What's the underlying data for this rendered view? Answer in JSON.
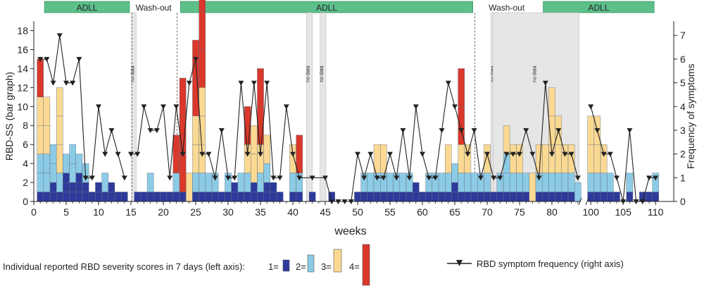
{
  "chart_data": {
    "type": "bar+line",
    "xlabel": "weeks",
    "ylabel_left": "RBD-SS (bar graph)",
    "ylabel_right": "Frequency of symptoms",
    "x_ticks": [
      "0",
      "5",
      "10",
      "15",
      "20",
      "25",
      "30",
      "35",
      "40",
      "45",
      "50",
      "55",
      "60",
      "65",
      "70",
      "75",
      "80",
      "100",
      "105",
      "110"
    ],
    "y_left_ticks": [
      "0",
      "2",
      "4",
      "6",
      "8",
      "10",
      "12",
      "14",
      "16",
      "18"
    ],
    "y_right_ticks": [
      "0",
      "1",
      "2",
      "3",
      "4",
      "5",
      "6",
      "7"
    ],
    "ylim_left": [
      0,
      19
    ],
    "ylim_right": [
      0,
      7.6
    ],
    "phases": [
      {
        "label": "ADLL",
        "start": 1,
        "end": 15
      },
      {
        "label": "Wash-out",
        "start": 15,
        "end": 22
      },
      {
        "label": "ADLL",
        "start": 22,
        "end": 68
      },
      {
        "label": "Wash-out",
        "start": 68,
        "end": 78
      },
      {
        "label": "ADLL",
        "start": 78,
        "end": 110
      }
    ],
    "no_data": [
      {
        "label": "no data",
        "start": 15.2,
        "end": 15.8
      },
      {
        "label": "no data",
        "start": 42.1,
        "end": 43.0
      },
      {
        "label": "no data",
        "start": 44.2,
        "end": 45.1
      },
      {
        "label": "no data",
        "start": 70.6,
        "end": 71.6
      },
      {
        "label": "no data",
        "start": 84.9,
        "end": 98.2
      }
    ],
    "legend": {
      "bars_title": "Individual reported RBD severity scores in 7 days (left axis):",
      "levels": [
        "1=",
        "2=",
        "3=",
        "4="
      ],
      "line": "RBD symptom frequency (right axis)"
    },
    "level_colors": {
      "1": "#2d3a9b",
      "2": "#8ccbe6",
      "3": "#fbd993",
      "4": "#d9382a"
    },
    "bars": [
      {
        "week": 1,
        "s": [
          1,
          2,
          2,
          1
        ]
      },
      {
        "week": 2,
        "s": [
          1,
          2,
          2,
          0
        ]
      },
      {
        "week": 3,
        "s": [
          2,
          2,
          0,
          0
        ]
      },
      {
        "week": 4,
        "s": [
          1,
          1,
          3,
          0
        ]
      },
      {
        "week": 5,
        "s": [
          3,
          1,
          0,
          0
        ]
      },
      {
        "week": 6,
        "s": [
          2,
          2,
          0,
          0
        ]
      },
      {
        "week": 7,
        "s": [
          3,
          1,
          0,
          0
        ]
      },
      {
        "week": 8,
        "s": [
          2,
          1,
          0,
          0
        ]
      },
      {
        "week": 9,
        "s": [
          1,
          0,
          0,
          0
        ]
      },
      {
        "week": 10,
        "s": [
          2,
          0,
          0,
          0
        ]
      },
      {
        "week": 11,
        "s": [
          1,
          1,
          0,
          0
        ]
      },
      {
        "week": 12,
        "s": [
          2,
          0,
          0,
          0
        ]
      },
      {
        "week": 13,
        "s": [
          1,
          0,
          0,
          0
        ]
      },
      {
        "week": 14,
        "s": [
          1,
          0,
          0,
          0
        ]
      },
      {
        "week": 16,
        "s": [
          1,
          0,
          0,
          0
        ]
      },
      {
        "week": 17,
        "s": [
          1,
          0,
          0,
          0
        ]
      },
      {
        "week": 18,
        "s": [
          1,
          1,
          0,
          0
        ]
      },
      {
        "week": 19,
        "s": [
          1,
          0,
          0,
          0
        ]
      },
      {
        "week": 20,
        "s": [
          1,
          0,
          0,
          0
        ]
      },
      {
        "week": 21,
        "s": [
          1,
          0,
          0,
          0
        ]
      },
      {
        "week": 22,
        "s": [
          1,
          1,
          0,
          1
        ]
      },
      {
        "week": 23,
        "s": [
          1,
          0,
          0,
          3
        ]
      },
      {
        "week": 24,
        "s": [
          0,
          0,
          1,
          0
        ]
      },
      {
        "week": 25,
        "s": [
          1,
          1,
          2,
          2
        ]
      },
      {
        "week": 26,
        "s": [
          1,
          1,
          3,
          4
        ]
      },
      {
        "week": 27,
        "s": [
          1,
          1,
          0,
          0
        ]
      },
      {
        "week": 28,
        "s": [
          1,
          1,
          0,
          0
        ]
      },
      {
        "week": 29,
        "s": [
          1,
          0,
          0,
          0
        ]
      },
      {
        "week": 30,
        "s": [
          1,
          1,
          0,
          0
        ]
      },
      {
        "week": 31,
        "s": [
          2,
          0,
          0,
          0
        ]
      },
      {
        "week": 32,
        "s": [
          1,
          1,
          0,
          0
        ]
      },
      {
        "week": 33,
        "s": [
          1,
          1,
          1,
          1
        ]
      },
      {
        "week": 34,
        "s": [
          2,
          0,
          2,
          0
        ]
      },
      {
        "week": 35,
        "s": [
          1,
          1,
          1,
          2
        ]
      },
      {
        "week": 36,
        "s": [
          2,
          1,
          1,
          0
        ]
      },
      {
        "week": 37,
        "s": [
          2,
          0,
          0,
          0
        ]
      },
      {
        "week": 38,
        "s": [
          1,
          0,
          0,
          0
        ]
      },
      {
        "week": 40,
        "s": [
          1,
          1,
          1,
          0
        ]
      },
      {
        "week": 41,
        "s": [
          1,
          1,
          0,
          1
        ]
      },
      {
        "week": 43,
        "s": [
          1,
          0,
          0,
          0
        ]
      },
      {
        "week": 46,
        "s": [
          1,
          0,
          0,
          0
        ]
      },
      {
        "week": 50,
        "s": [
          1,
          0,
          0,
          0
        ]
      },
      {
        "week": 51,
        "s": [
          1,
          1,
          0,
          0
        ]
      },
      {
        "week": 52,
        "s": [
          1,
          1,
          0,
          0
        ]
      },
      {
        "week": 53,
        "s": [
          1,
          1,
          1,
          0
        ]
      },
      {
        "week": 54,
        "s": [
          1,
          1,
          1,
          0
        ]
      },
      {
        "week": 55,
        "s": [
          1,
          1,
          0,
          0
        ]
      },
      {
        "week": 56,
        "s": [
          1,
          1,
          0,
          0
        ]
      },
      {
        "week": 57,
        "s": [
          1,
          1,
          0,
          0
        ]
      },
      {
        "week": 58,
        "s": [
          1,
          1,
          0,
          0
        ]
      },
      {
        "week": 59,
        "s": [
          2,
          0,
          0,
          0
        ]
      },
      {
        "week": 60,
        "s": [
          1,
          0,
          0,
          0
        ]
      },
      {
        "week": 61,
        "s": [
          1,
          1,
          0,
          0
        ]
      },
      {
        "week": 62,
        "s": [
          1,
          1,
          0,
          0
        ]
      },
      {
        "week": 63,
        "s": [
          1,
          1,
          0,
          0
        ]
      },
      {
        "week": 64,
        "s": [
          1,
          1,
          1,
          0
        ]
      },
      {
        "week": 65,
        "s": [
          2,
          1,
          0,
          0
        ]
      },
      {
        "week": 66,
        "s": [
          1,
          1,
          1,
          2
        ]
      },
      {
        "week": 67,
        "s": [
          1,
          1,
          1,
          0
        ]
      },
      {
        "week": 68,
        "s": [
          1,
          1,
          0,
          0
        ]
      },
      {
        "week": 69,
        "s": [
          1,
          1,
          0,
          0
        ]
      },
      {
        "week": 70,
        "s": [
          1,
          1,
          1,
          0
        ]
      },
      {
        "week": 71,
        "s": [
          1,
          0,
          0,
          0
        ]
      },
      {
        "week": 72,
        "s": [
          1,
          1,
          0,
          0
        ]
      },
      {
        "week": 73,
        "s": [
          1,
          2,
          1,
          0
        ]
      },
      {
        "week": 74,
        "s": [
          1,
          1,
          1,
          0
        ]
      },
      {
        "week": 75,
        "s": [
          1,
          1,
          1,
          0
        ]
      },
      {
        "week": 76,
        "s": [
          1,
          1,
          0,
          0
        ]
      },
      {
        "week": 77,
        "s": [
          0,
          0,
          1,
          0
        ]
      },
      {
        "week": 78,
        "s": [
          1,
          1,
          1,
          0
        ]
      },
      {
        "week": 79,
        "s": [
          1,
          1,
          1,
          0
        ]
      },
      {
        "week": 80,
        "s": [
          1,
          1,
          3,
          0
        ]
      },
      {
        "week": 81,
        "s": [
          1,
          1,
          2,
          0
        ]
      },
      {
        "week": 82,
        "s": [
          1,
          1,
          1,
          0
        ]
      },
      {
        "week": 83,
        "s": [
          1,
          1,
          1,
          0
        ]
      },
      {
        "week": 84,
        "s": [
          0,
          1,
          0,
          0
        ]
      },
      {
        "week": 100,
        "s": [
          1,
          1,
          2,
          0
        ]
      },
      {
        "week": 101,
        "s": [
          1,
          1,
          2,
          0
        ]
      },
      {
        "week": 102,
        "s": [
          1,
          1,
          1,
          0
        ]
      },
      {
        "week": 103,
        "s": [
          1,
          1,
          0,
          0
        ]
      },
      {
        "week": 104,
        "s": [
          1,
          0,
          0,
          0
        ]
      },
      {
        "week": 106,
        "s": [
          1,
          1,
          0,
          0
        ]
      },
      {
        "week": 108,
        "s": [
          1,
          0,
          0,
          0
        ]
      },
      {
        "week": 109,
        "s": [
          1,
          0,
          0,
          0
        ]
      },
      {
        "week": 110,
        "s": [
          1,
          1,
          0,
          0
        ]
      }
    ],
    "frequency_line": [
      [
        [
          1,
          6
        ],
        [
          2,
          6
        ],
        [
          3,
          5
        ],
        [
          4,
          7
        ],
        [
          5,
          5
        ],
        [
          6,
          5
        ],
        [
          7,
          6
        ],
        [
          8,
          1
        ],
        [
          9,
          1
        ],
        [
          10,
          4
        ],
        [
          11,
          2
        ],
        [
          12,
          3
        ],
        [
          13,
          2
        ],
        [
          14,
          1
        ]
      ],
      [
        [
          15,
          2
        ],
        [
          16,
          2
        ],
        [
          17,
          4
        ],
        [
          18,
          3
        ],
        [
          19,
          3
        ],
        [
          20,
          4
        ],
        [
          21,
          1
        ],
        [
          22,
          4
        ],
        [
          23,
          2
        ],
        [
          24,
          5
        ],
        [
          25,
          6
        ],
        [
          26,
          2
        ],
        [
          27,
          2
        ],
        [
          28,
          1
        ],
        [
          29,
          3
        ],
        [
          30,
          1
        ],
        [
          31,
          1
        ],
        [
          32,
          5
        ],
        [
          33,
          2
        ],
        [
          34,
          5
        ],
        [
          35,
          2
        ],
        [
          36,
          5
        ],
        [
          37,
          1
        ],
        [
          38,
          1
        ],
        [
          39,
          4
        ],
        [
          40,
          2
        ],
        [
          41,
          1
        ],
        [
          43,
          1
        ],
        [
          45,
          1
        ],
        [
          46,
          0
        ],
        [
          47,
          0
        ],
        [
          48,
          0
        ],
        [
          49,
          0
        ],
        [
          50,
          2
        ],
        [
          51,
          1
        ],
        [
          52,
          2
        ],
        [
          53,
          1
        ],
        [
          54,
          1
        ],
        [
          55,
          2
        ],
        [
          56,
          1
        ],
        [
          57,
          3
        ],
        [
          58,
          1
        ],
        [
          59,
          4
        ],
        [
          60,
          2
        ],
        [
          61,
          1
        ],
        [
          62,
          1
        ],
        [
          63,
          3
        ],
        [
          64,
          5
        ],
        [
          65,
          4
        ],
        [
          66,
          3
        ],
        [
          67,
          2
        ],
        [
          68,
          3
        ],
        [
          69,
          1
        ],
        [
          70,
          2
        ],
        [
          71,
          1
        ],
        [
          72,
          1
        ],
        [
          73,
          2
        ],
        [
          74,
          2
        ],
        [
          75,
          2
        ],
        [
          76,
          3
        ],
        [
          77,
          2
        ],
        [
          78,
          1
        ],
        [
          79,
          5
        ],
        [
          80,
          2
        ],
        [
          81,
          3
        ],
        [
          82,
          2
        ],
        [
          83,
          2
        ],
        [
          84,
          1
        ]
      ],
      [
        [
          100,
          4
        ],
        [
          101,
          3
        ],
        [
          102,
          2
        ],
        [
          103,
          2
        ],
        [
          104,
          1
        ],
        [
          105,
          0
        ],
        [
          106,
          3
        ],
        [
          107,
          0
        ],
        [
          108,
          0
        ],
        [
          109,
          1
        ],
        [
          110,
          1
        ]
      ]
    ]
  }
}
